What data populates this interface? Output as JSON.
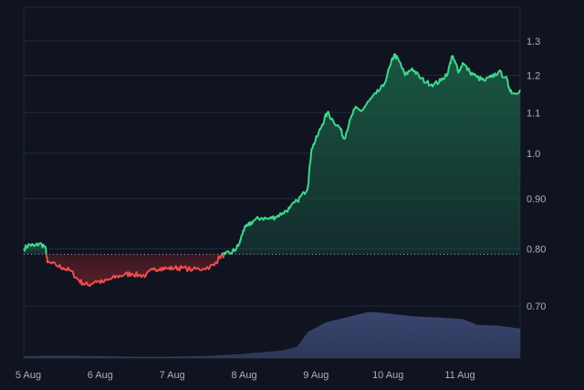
{
  "chart_data": {
    "type": "area",
    "title": "",
    "xlabel": "",
    "ylabel": "",
    "baseline": 0.79,
    "ylim": [
      0.64,
      1.32
    ],
    "y_scale": "log",
    "yticks": [
      "1.3",
      "1.2",
      "1.1",
      "1.0",
      "0.90",
      "0.80",
      "0.70"
    ],
    "y_tick_values": [
      1.3,
      1.2,
      1.1,
      1.0,
      0.9,
      0.8,
      0.7
    ],
    "xticks": [
      "5 Aug",
      "6 Aug",
      "7 Aug",
      "8 Aug",
      "9 Aug",
      "10 Aug",
      "11 Aug"
    ],
    "x_tick_values": [
      0,
      1,
      2,
      3,
      4,
      5,
      6
    ],
    "xlim": [
      0,
      6.9
    ],
    "colors": {
      "above": "#3fd68c",
      "below": "#ef4d4d",
      "above_fill": "#1a5a44",
      "below_fill": "#5e1e25",
      "volume": "#3a4670",
      "baseline": "#9aa1ad"
    },
    "series": [
      {
        "values": [
          [
            0.0,
            0.8
          ],
          [
            0.08,
            0.808
          ],
          [
            0.15,
            0.805
          ],
          [
            0.22,
            0.81
          ],
          [
            0.3,
            0.804
          ],
          [
            0.33,
            0.775
          ],
          [
            0.45,
            0.77
          ],
          [
            0.55,
            0.765
          ],
          [
            0.65,
            0.76
          ],
          [
            0.75,
            0.745
          ],
          [
            0.82,
            0.738
          ],
          [
            0.9,
            0.735
          ],
          [
            1.0,
            0.742
          ],
          [
            1.1,
            0.74
          ],
          [
            1.2,
            0.745
          ],
          [
            1.3,
            0.75
          ],
          [
            1.4,
            0.753
          ],
          [
            1.5,
            0.755
          ],
          [
            1.6,
            0.752
          ],
          [
            1.7,
            0.752
          ],
          [
            1.8,
            0.762
          ],
          [
            1.9,
            0.765
          ],
          [
            2.0,
            0.764
          ],
          [
            2.1,
            0.765
          ],
          [
            2.2,
            0.765
          ],
          [
            2.35,
            0.762
          ],
          [
            2.5,
            0.764
          ],
          [
            2.65,
            0.77
          ],
          [
            2.72,
            0.785
          ],
          [
            2.8,
            0.79
          ],
          [
            2.88,
            0.792
          ],
          [
            2.95,
            0.8
          ],
          [
            3.0,
            0.81
          ],
          [
            3.05,
            0.835
          ],
          [
            3.12,
            0.845
          ],
          [
            3.2,
            0.855
          ],
          [
            3.3,
            0.86
          ],
          [
            3.4,
            0.858
          ],
          [
            3.5,
            0.862
          ],
          [
            3.6,
            0.87
          ],
          [
            3.7,
            0.88
          ],
          [
            3.8,
            0.895
          ],
          [
            3.9,
            0.912
          ],
          [
            3.95,
            0.925
          ],
          [
            4.0,
            1.01
          ],
          [
            4.08,
            1.04
          ],
          [
            4.15,
            1.07
          ],
          [
            4.22,
            1.1
          ],
          [
            4.3,
            1.08
          ],
          [
            4.4,
            1.06
          ],
          [
            4.45,
            1.035
          ],
          [
            4.52,
            1.07
          ],
          [
            4.6,
            1.11
          ],
          [
            4.7,
            1.105
          ],
          [
            4.8,
            1.13
          ],
          [
            4.9,
            1.15
          ],
          [
            5.0,
            1.17
          ],
          [
            5.1,
            1.23
          ],
          [
            5.15,
            1.26
          ],
          [
            5.22,
            1.24
          ],
          [
            5.3,
            1.2
          ],
          [
            5.4,
            1.22
          ],
          [
            5.5,
            1.195
          ],
          [
            5.6,
            1.18
          ],
          [
            5.7,
            1.175
          ],
          [
            5.8,
            1.185
          ],
          [
            5.9,
            1.21
          ],
          [
            5.95,
            1.255
          ],
          [
            6.0,
            1.235
          ],
          [
            6.05,
            1.21
          ],
          [
            6.1,
            1.235
          ],
          [
            6.2,
            1.21
          ],
          [
            6.3,
            1.195
          ],
          [
            6.4,
            1.185
          ],
          [
            6.5,
            1.195
          ],
          [
            6.6,
            1.21
          ],
          [
            6.7,
            1.195
          ],
          [
            6.75,
            1.165
          ],
          [
            6.8,
            1.15
          ],
          [
            6.9,
            1.16
          ]
        ]
      }
    ],
    "volume": [
      [
        0.0,
        0.04
      ],
      [
        0.5,
        0.05
      ],
      [
        1.0,
        0.04
      ],
      [
        1.5,
        0.03
      ],
      [
        2.0,
        0.03
      ],
      [
        2.5,
        0.04
      ],
      [
        3.0,
        0.08
      ],
      [
        3.3,
        0.12
      ],
      [
        3.6,
        0.16
      ],
      [
        3.8,
        0.24
      ],
      [
        3.95,
        0.55
      ],
      [
        4.2,
        0.75
      ],
      [
        4.6,
        0.9
      ],
      [
        4.8,
        0.97
      ],
      [
        5.0,
        0.95
      ],
      [
        5.4,
        0.88
      ],
      [
        5.8,
        0.85
      ],
      [
        6.1,
        0.82
      ],
      [
        6.3,
        0.7
      ],
      [
        6.6,
        0.68
      ],
      [
        6.9,
        0.62
      ]
    ]
  }
}
